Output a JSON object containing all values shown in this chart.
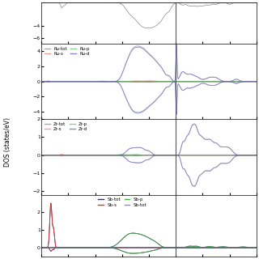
{
  "x_range": [
    -10,
    6
  ],
  "fermi_x": 0.0,
  "top_panel": {
    "ylim": [
      -7,
      0
    ],
    "yticks": [
      -6,
      -4
    ],
    "height_ratio": 1.2
  },
  "ru_panel": {
    "ylim": [
      -5,
      5
    ],
    "yticks": [
      -4,
      -2,
      0,
      2,
      4
    ],
    "height_ratio": 2.2,
    "legend": [
      {
        "label": "Ru-tot",
        "color": "#aaaaaa"
      },
      {
        "label": "Ru-s",
        "color": "#e8a090"
      },
      {
        "label": "Ru-p",
        "color": "#90d090"
      },
      {
        "label": "Ru-d",
        "color": "#8888cc"
      }
    ]
  },
  "zr_panel": {
    "ylim": [
      -2.2,
      2.0
    ],
    "yticks": [
      -2,
      -1,
      0,
      1,
      2
    ],
    "height_ratio": 2.2,
    "legend": [
      {
        "label": "Zr-tot",
        "color": "#aaaaaa"
      },
      {
        "label": "Zr-s",
        "color": "#e8a090"
      },
      {
        "label": "Zr-p",
        "color": "#90d090"
      },
      {
        "label": "Zr-d",
        "color": "#8888cc"
      }
    ]
  },
  "sb_panel": {
    "ylim": [
      -0.5,
      3.0
    ],
    "yticks": [
      0,
      1,
      2
    ],
    "height_ratio": 1.8,
    "legend": [
      {
        "label": "Sb-tot",
        "color": "#333366"
      },
      {
        "label": "Sb-s",
        "color": "#dd3333"
      },
      {
        "label": "Sb-p",
        "color": "#44aa44"
      },
      {
        "label": "Sb-tot",
        "color": "#8888cc"
      }
    ]
  },
  "ylabel": "DOS (states/eV)",
  "background": "#ffffff",
  "line_color_top": "#888888",
  "fermi_color": "#555555",
  "fermi_lw": 0.8
}
